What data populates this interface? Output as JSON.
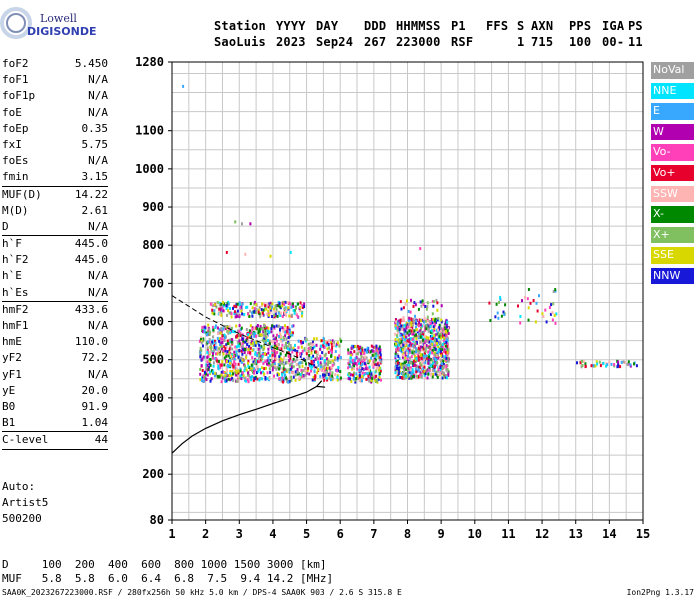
{
  "logo": {
    "line1": "Lowell",
    "line2": "DIGISONDE"
  },
  "header": {
    "cols": [
      "Station",
      "YYYY",
      "DAY",
      "DDD",
      "HHMMSS",
      "P1",
      "FFS",
      "S",
      "AXN",
      "PPS",
      "IGA",
      "PS"
    ],
    "vals": [
      "SaoLuis",
      "2023",
      "Sep24",
      "267",
      "223000",
      "RSF",
      "",
      "1",
      "715",
      "100",
      "00-",
      "11"
    ]
  },
  "params": [
    {
      "name": "foF2",
      "value": "5.450"
    },
    {
      "name": "foF1",
      "value": "N/A"
    },
    {
      "name": "foF1p",
      "value": "N/A"
    },
    {
      "name": "foE",
      "value": "N/A"
    },
    {
      "name": "foEp",
      "value": "0.35"
    },
    {
      "name": "fxI",
      "value": "5.75"
    },
    {
      "name": "foEs",
      "value": "N/A"
    },
    {
      "name": "fmin",
      "value": "3.15"
    },
    {
      "name": "MUF(D)",
      "value": "14.22"
    },
    {
      "name": "M(D)",
      "value": "2.61"
    },
    {
      "name": "D",
      "value": "N/A"
    },
    {
      "name": "h`F",
      "value": "445.0"
    },
    {
      "name": "h`F2",
      "value": "445.0"
    },
    {
      "name": "h`E",
      "value": "N/A"
    },
    {
      "name": "h`Es",
      "value": "N/A"
    },
    {
      "name": "hmF2",
      "value": "433.6"
    },
    {
      "name": "hmF1",
      "value": "N/A"
    },
    {
      "name": "hmE",
      "value": "110.0"
    },
    {
      "name": "yF2",
      "value": "72.2"
    },
    {
      "name": "yF1",
      "value": "N/A"
    },
    {
      "name": "yE",
      "value": "20.0"
    },
    {
      "name": "B0",
      "value": "91.9"
    },
    {
      "name": "B1",
      "value": "1.04"
    },
    {
      "name": "C-level",
      "value": "44"
    }
  ],
  "auto": {
    "line1": "Auto:",
    "line2": "Artist5",
    "line3": "500200"
  },
  "legend": [
    {
      "label": "NoVal",
      "color": "#a0a0a0"
    },
    {
      "label": "NNE",
      "color": "#00e4ff"
    },
    {
      "label": "E",
      "color": "#38a8ff"
    },
    {
      "label": "W",
      "color": "#b000b0"
    },
    {
      "label": "Vo-",
      "color": "#ff40b8"
    },
    {
      "label": "Vo+",
      "color": "#e8002c"
    },
    {
      "label": "SSW",
      "color": "#ffb4b4"
    },
    {
      "label": "X-",
      "color": "#008800"
    },
    {
      "label": "X+",
      "color": "#80c060"
    },
    {
      "label": "SSE",
      "color": "#d8d800"
    },
    {
      "label": "NNW",
      "color": "#1818d8"
    }
  ],
  "bottom": {
    "d_row": "D     100  200  400  600  800 1000 1500 3000 [km]",
    "muf_row": "MUF   5.8  5.8  6.0  6.4  6.8  7.5  9.4 14.2 [MHz]"
  },
  "footer": {
    "left": "SAA0K_2023267223000.RSF / 280fx256h 50 kHz 5.0 km / DPS-4 SAA0K 903 / 2.6 S 315.8 E",
    "right": "Ion2Png 1.3.17"
  },
  "chart_data": {
    "type": "scatter",
    "title": "",
    "xlabel": "",
    "ylabel": "",
    "xlim": [
      1,
      15
    ],
    "ylim": [
      80,
      1280
    ],
    "x_ticks": [
      1,
      2,
      3,
      4,
      5,
      6,
      7,
      8,
      9,
      10,
      11,
      12,
      13,
      14,
      15
    ],
    "y_ticks": [
      80,
      200,
      300,
      400,
      500,
      600,
      700,
      800,
      900,
      1000,
      1100,
      1280
    ],
    "grid": true,
    "legend_position": "right",
    "clusters": [
      {
        "x": [
          1.8,
          4.6
        ],
        "y": [
          445,
          595
        ],
        "density": "very high",
        "note": "O/X trace"
      },
      {
        "x": [
          2.1,
          4.9
        ],
        "y": [
          615,
          655
        ],
        "density": "high",
        "note": "second hop"
      },
      {
        "x": [
          4.6,
          6.0
        ],
        "y": [
          450,
          560
        ],
        "density": "medium"
      },
      {
        "x": [
          6.2,
          7.2
        ],
        "y": [
          445,
          540
        ],
        "density": "medium"
      },
      {
        "x": [
          7.6,
          9.2
        ],
        "y": [
          455,
          610
        ],
        "density": "very high"
      },
      {
        "x": [
          7.7,
          9.0
        ],
        "y": [
          605,
          660
        ],
        "density": "low"
      },
      {
        "x": [
          10.3,
          12.4
        ],
        "y": [
          595,
          690
        ],
        "density": "low"
      },
      {
        "x": [
          13.0,
          14.8
        ],
        "y": [
          485,
          500
        ],
        "density": "low"
      }
    ],
    "outliers": [
      {
        "x": 1.3,
        "y": 1220
      },
      {
        "x": 2.6,
        "y": 785
      },
      {
        "x": 2.85,
        "y": 865
      },
      {
        "x": 3.05,
        "y": 860
      },
      {
        "x": 3.3,
        "y": 860
      },
      {
        "x": 3.15,
        "y": 780
      },
      {
        "x": 3.9,
        "y": 775
      },
      {
        "x": 4.5,
        "y": 785
      },
      {
        "x": 8.35,
        "y": 795
      }
    ],
    "profile_solid": {
      "x": [
        1.0,
        1.3,
        1.6,
        2.0,
        2.5,
        3.0,
        3.5,
        4.0,
        4.5,
        5.0,
        5.3,
        5.45,
        5.3,
        5.55
      ],
      "y": [
        255,
        280,
        300,
        320,
        340,
        356,
        370,
        385,
        400,
        415,
        430,
        445,
        430,
        428
      ]
    },
    "profile_dashed": {
      "x": [
        1.0,
        1.5,
        2.0,
        2.5,
        3.0,
        3.5,
        4.0,
        4.5,
        5.0,
        5.3
      ],
      "y": [
        668,
        640,
        612,
        590,
        568,
        550,
        532,
        515,
        495,
        478
      ]
    }
  }
}
